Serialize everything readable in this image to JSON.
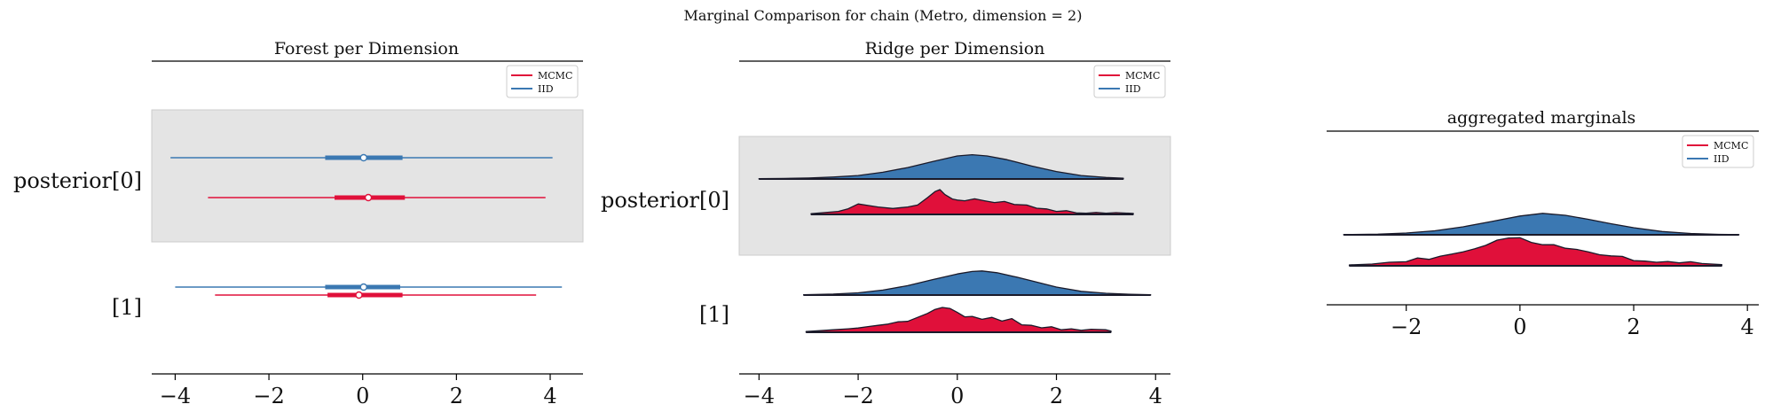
{
  "suptitle": "Marginal Comparison for chain (Metro, dimension = 2)",
  "colors": {
    "mcmc": "#e0103a",
    "iid": "#3b78b2",
    "band": "#e4e4e4"
  },
  "chart_data": [
    {
      "type": "forest",
      "title": "Forest per Dimension",
      "legend": [
        "MCMC",
        "IID"
      ],
      "legend_position": "top-right",
      "row_labels": [
        "posterior[0]",
        "[1]"
      ],
      "xlim": [
        -4.5,
        4.7
      ],
      "xticks": [
        -4,
        -2,
        0,
        2,
        4
      ],
      "xtick_labels": [
        "−4",
        "−2",
        "0",
        "2",
        "4"
      ],
      "rows": [
        {
          "label": "posterior[0]",
          "shaded": true,
          "series": [
            {
              "name": "IID",
              "range": [
                -4.1,
                4.05
              ],
              "hdi": [
                -0.8,
                0.85
              ],
              "point": 0.02
            },
            {
              "name": "MCMC",
              "range": [
                -3.3,
                3.9
              ],
              "hdi": [
                -0.6,
                0.9
              ],
              "point": 0.12
            }
          ]
        },
        {
          "label": "[1]",
          "shaded": false,
          "series": [
            {
              "name": "IID",
              "range": [
                -4.0,
                4.25
              ],
              "hdi": [
                -0.8,
                0.8
              ],
              "point": 0.02
            },
            {
              "name": "MCMC",
              "range": [
                -3.15,
                3.7
              ],
              "hdi": [
                -0.75,
                0.85
              ],
              "point": -0.08
            }
          ]
        }
      ]
    },
    {
      "type": "ridge",
      "title": "Ridge per Dimension",
      "legend": [
        "MCMC",
        "IID"
      ],
      "legend_position": "top-right",
      "row_labels": [
        "posterior[0]",
        "[1]"
      ],
      "xlim": [
        -4.4,
        4.3
      ],
      "xticks": [
        -4,
        -2,
        0,
        2,
        4
      ],
      "xtick_labels": [
        "−4",
        "−2",
        "0",
        "2",
        "4"
      ],
      "rows": [
        {
          "label": "posterior[0]",
          "shaded": true,
          "series": [
            {
              "name": "IID",
              "x": [
                -4.0,
                -3.5,
                -3.0,
                -2.5,
                -2.0,
                -1.5,
                -1.0,
                -0.5,
                0.0,
                0.3,
                0.6,
                1.0,
                1.5,
                2.0,
                2.5,
                3.0,
                3.35
              ],
              "density": [
                0.01,
                0.02,
                0.04,
                0.08,
                0.14,
                0.27,
                0.46,
                0.7,
                0.93,
                0.98,
                0.93,
                0.78,
                0.52,
                0.3,
                0.14,
                0.06,
                0.03
              ]
            },
            {
              "name": "MCMC",
              "x": [
                -2.95,
                -2.7,
                -2.4,
                -2.2,
                -2.0,
                -1.8,
                -1.6,
                -1.3,
                -1.0,
                -0.8,
                -0.6,
                -0.45,
                -0.35,
                -0.25,
                -0.1,
                0.0,
                0.15,
                0.35,
                0.55,
                0.75,
                0.95,
                1.15,
                1.4,
                1.6,
                1.8,
                2.0,
                2.2,
                2.4,
                2.6,
                2.8,
                3.0,
                3.2,
                3.55
              ],
              "density": [
                0.03,
                0.07,
                0.12,
                0.23,
                0.42,
                0.36,
                0.3,
                0.24,
                0.3,
                0.38,
                0.68,
                0.92,
                1.0,
                0.8,
                0.62,
                0.58,
                0.55,
                0.63,
                0.55,
                0.48,
                0.52,
                0.4,
                0.38,
                0.25,
                0.22,
                0.12,
                0.15,
                0.06,
                0.05,
                0.08,
                0.05,
                0.07,
                0.04
              ]
            }
          ]
        },
        {
          "label": "[1]",
          "shaded": false,
          "series": [
            {
              "name": "IID",
              "x": [
                -3.1,
                -2.5,
                -2.0,
                -1.5,
                -1.0,
                -0.5,
                0.0,
                0.3,
                0.5,
                0.8,
                1.2,
                1.6,
                2.0,
                2.5,
                3.0,
                3.5,
                3.9
              ],
              "density": [
                0.01,
                0.04,
                0.09,
                0.2,
                0.38,
                0.62,
                0.85,
                0.95,
                0.97,
                0.9,
                0.72,
                0.52,
                0.32,
                0.15,
                0.07,
                0.03,
                0.01
              ]
            },
            {
              "name": "MCMC",
              "x": [
                -3.05,
                -2.8,
                -2.5,
                -2.2,
                -2.0,
                -1.8,
                -1.6,
                -1.4,
                -1.2,
                -1.0,
                -0.8,
                -0.6,
                -0.45,
                -0.3,
                -0.15,
                0.0,
                0.15,
                0.3,
                0.5,
                0.7,
                0.9,
                1.1,
                1.3,
                1.5,
                1.7,
                1.9,
                2.1,
                2.3,
                2.5,
                2.7,
                3.0,
                3.1
              ],
              "density": [
                0.03,
                0.06,
                0.1,
                0.14,
                0.17,
                0.23,
                0.28,
                0.33,
                0.42,
                0.44,
                0.6,
                0.76,
                0.92,
                1.0,
                0.96,
                0.8,
                0.62,
                0.64,
                0.52,
                0.6,
                0.45,
                0.55,
                0.3,
                0.28,
                0.18,
                0.22,
                0.1,
                0.14,
                0.08,
                0.12,
                0.1,
                0.05
              ]
            }
          ]
        }
      ]
    },
    {
      "type": "ridge",
      "title": "aggregated marginals",
      "legend": [
        "MCMC",
        "IID"
      ],
      "legend_position": "top-right",
      "xlim": [
        -3.4,
        4.2
      ],
      "xticks": [
        -2,
        0,
        2,
        4
      ],
      "xtick_labels": [
        "−2",
        "0",
        "2",
        "4"
      ],
      "series": [
        {
          "name": "IID",
          "x": [
            -3.1,
            -2.5,
            -2.0,
            -1.5,
            -1.0,
            -0.5,
            0.0,
            0.4,
            0.8,
            1.2,
            1.6,
            2.0,
            2.5,
            3.0,
            3.5,
            3.85
          ],
          "density": [
            0.01,
            0.03,
            0.08,
            0.18,
            0.36,
            0.6,
            0.85,
            0.97,
            0.88,
            0.7,
            0.5,
            0.32,
            0.15,
            0.06,
            0.02,
            0.01
          ]
        },
        {
          "name": "MCMC",
          "x": [
            -3.0,
            -2.6,
            -2.3,
            -2.0,
            -1.8,
            -1.6,
            -1.4,
            -1.2,
            -1.0,
            -0.8,
            -0.6,
            -0.4,
            -0.2,
            0.0,
            0.2,
            0.4,
            0.6,
            0.8,
            1.0,
            1.2,
            1.4,
            1.6,
            1.8,
            2.0,
            2.2,
            2.4,
            2.6,
            2.8,
            3.0,
            3.2,
            3.55
          ],
          "density": [
            0.03,
            0.06,
            0.12,
            0.14,
            0.27,
            0.22,
            0.33,
            0.4,
            0.48,
            0.58,
            0.7,
            0.88,
            0.95,
            0.96,
            0.8,
            0.72,
            0.72,
            0.6,
            0.56,
            0.48,
            0.38,
            0.34,
            0.32,
            0.18,
            0.16,
            0.12,
            0.15,
            0.1,
            0.14,
            0.08,
            0.04
          ]
        }
      ]
    }
  ]
}
